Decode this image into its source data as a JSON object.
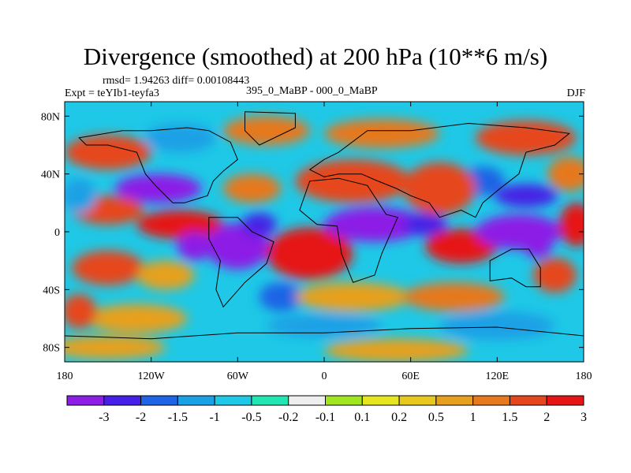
{
  "title": "Divergence (smoothed) at 200 hPa (10**6 m/s)",
  "stats_text": "rmsd= 1.94263  diff= 0.00108443",
  "experiment_text": "Expt = teYIb1-teyfa3",
  "difference_text": "395_0_MaBP - 000_0_MaBP",
  "season": "DJF",
  "map": {
    "projection": "cylindrical-equidistant",
    "lon_range": [
      -180,
      180
    ],
    "lat_range": [
      -90,
      90
    ],
    "lon_ticks": [
      {
        "value": -180,
        "label": "180"
      },
      {
        "value": -120,
        "label": "120W"
      },
      {
        "value": -60,
        "label": "60W"
      },
      {
        "value": 0,
        "label": "0"
      },
      {
        "value": 60,
        "label": "60E"
      },
      {
        "value": 120,
        "label": "120E"
      },
      {
        "value": 180,
        "label": "180"
      }
    ],
    "lat_ticks": [
      {
        "value": 80,
        "label": "80N"
      },
      {
        "value": 40,
        "label": "40N"
      },
      {
        "value": 0,
        "label": "0"
      },
      {
        "value": -40,
        "label": "40S"
      },
      {
        "value": -80,
        "label": "80S"
      }
    ]
  },
  "colorbar": {
    "colors": [
      "#8c1ee6",
      "#4620e6",
      "#1f64e6",
      "#1aa0e6",
      "#1ec8e6",
      "#20e6b4",
      "#eeeeee",
      "#a0e620",
      "#e6e620",
      "#e6c81e",
      "#e6a01e",
      "#e6781e",
      "#e6461e",
      "#e61414"
    ],
    "boundary_labels": [
      "-3",
      "-2",
      "-1.5",
      "-1",
      "-0.5",
      "-0.2",
      "-0.1",
      "0.1",
      "0.2",
      "0.5",
      "1",
      "1.5",
      "2",
      "3"
    ]
  },
  "field_blobs": [
    {
      "lon": -115,
      "lat": 30,
      "rx": 30,
      "ry": 10,
      "v": -3
    },
    {
      "lon": -100,
      "lat": 5,
      "rx": 30,
      "ry": 10,
      "v": 2.5
    },
    {
      "lon": -150,
      "lat": 15,
      "rx": 25,
      "ry": 10,
      "v": 2
    },
    {
      "lon": -170,
      "lat": 25,
      "rx": 12,
      "ry": 12,
      "v": -1
    },
    {
      "lon": -60,
      "lat": -10,
      "rx": 22,
      "ry": 16,
      "v": -3
    },
    {
      "lon": -45,
      "lat": 5,
      "rx": 12,
      "ry": 8,
      "v": -2
    },
    {
      "lon": -90,
      "lat": -10,
      "rx": 12,
      "ry": 10,
      "v": -3
    },
    {
      "lon": -10,
      "lat": -15,
      "rx": 30,
      "ry": 18,
      "v": 3
    },
    {
      "lon": 35,
      "lat": 5,
      "rx": 35,
      "ry": 12,
      "v": -3
    },
    {
      "lon": 70,
      "lat": 5,
      "rx": 15,
      "ry": 8,
      "v": -2
    },
    {
      "lon": 95,
      "lat": -10,
      "rx": 25,
      "ry": 12,
      "v": 2.5
    },
    {
      "lon": 135,
      "lat": 0,
      "rx": 30,
      "ry": 12,
      "v": -3
    },
    {
      "lon": 140,
      "lat": 25,
      "rx": 22,
      "ry": 8,
      "v": -2
    },
    {
      "lon": 110,
      "lat": 35,
      "rx": 15,
      "ry": 10,
      "v": -1.5
    },
    {
      "lon": 80,
      "lat": 30,
      "rx": 25,
      "ry": 18,
      "v": 2
    },
    {
      "lon": 20,
      "lat": 35,
      "rx": 40,
      "ry": 15,
      "v": 2
    },
    {
      "lon": -50,
      "lat": 30,
      "rx": 20,
      "ry": 10,
      "v": 1.5
    },
    {
      "lon": -150,
      "lat": 55,
      "rx": 30,
      "ry": 12,
      "v": 2
    },
    {
      "lon": -100,
      "lat": 65,
      "rx": 25,
      "ry": 10,
      "v": -1
    },
    {
      "lon": -40,
      "lat": 70,
      "rx": 30,
      "ry": 10,
      "v": 1.5
    },
    {
      "lon": 40,
      "lat": 68,
      "rx": 40,
      "ry": 10,
      "v": 1.5
    },
    {
      "lon": 140,
      "lat": 65,
      "rx": 35,
      "ry": 12,
      "v": 2
    },
    {
      "lon": 170,
      "lat": 40,
      "rx": 15,
      "ry": 12,
      "v": 1.5
    },
    {
      "lon": 175,
      "lat": 5,
      "rx": 12,
      "ry": 15,
      "v": 2.5
    },
    {
      "lon": -150,
      "lat": -25,
      "rx": 25,
      "ry": 12,
      "v": 2
    },
    {
      "lon": -110,
      "lat": -30,
      "rx": 20,
      "ry": 10,
      "v": 1
    },
    {
      "lon": -30,
      "lat": -45,
      "rx": 15,
      "ry": 10,
      "v": -1.5
    },
    {
      "lon": 20,
      "lat": -45,
      "rx": 40,
      "ry": 10,
      "v": 1
    },
    {
      "lon": 90,
      "lat": -45,
      "rx": 35,
      "ry": 10,
      "v": 1.5
    },
    {
      "lon": 160,
      "lat": -30,
      "rx": 15,
      "ry": 12,
      "v": 2
    },
    {
      "lon": -130,
      "lat": -60,
      "rx": 35,
      "ry": 10,
      "v": 1
    },
    {
      "lon": 0,
      "lat": -65,
      "rx": 40,
      "ry": 8,
      "v": -1
    },
    {
      "lon": 120,
      "lat": -65,
      "rx": 40,
      "ry": 10,
      "v": -1
    },
    {
      "lon": -150,
      "lat": -80,
      "rx": 40,
      "ry": 8,
      "v": 1
    },
    {
      "lon": 50,
      "lat": -82,
      "rx": 50,
      "ry": 8,
      "v": 1
    },
    {
      "lon": 148,
      "lat": -10,
      "rx": 10,
      "ry": 8,
      "v": -3
    },
    {
      "lon": -170,
      "lat": -55,
      "rx": 12,
      "ry": 12,
      "v": 2
    }
  ],
  "coastline_paths": [
    "M-170,65 L-140,70 L-120,70 L-95,72 L-80,70 L-65,62 L-60,50 L-70,42 L-77,35 L-81,25 L-97,20 L-105,20 L-117,32 L-124,40 L-130,55 L-150,60 L-165,60 Z",
    "M-55,83 L-20,82 L-20,72 L-45,60 L-55,70 Z",
    "M-80,10 L-60,10 L-50,0 L-35,-7 L-40,-22 L-55,-35 L-70,-52 L-75,-40 L-72,-20 L-80,-5 Z",
    "M-10,35 L10,37 L30,32 L43,12 L51,10 L40,-15 L35,-30 L20,-35 L12,-15 L9,4 L-5,5 L-17,15 Z",
    "M-10,43 L0,50 L10,55 L30,70 L60,70 L100,75 L140,72 L170,68 L160,60 L140,55 L135,40 L122,30 L110,20 L105,10 L95,15 L80,10 L73,20 L60,25 L50,30 L35,36 L26,40 L10,40 L0,38 Z",
    "M115,-20 L130,-12 L142,-12 L150,-25 L150,-38 L140,-38 L130,-32 L115,-34 Z",
    "M-180,-72 L-120,-74 L-60,-70 L0,-70 L60,-67 L120,-66 L180,-72"
  ]
}
